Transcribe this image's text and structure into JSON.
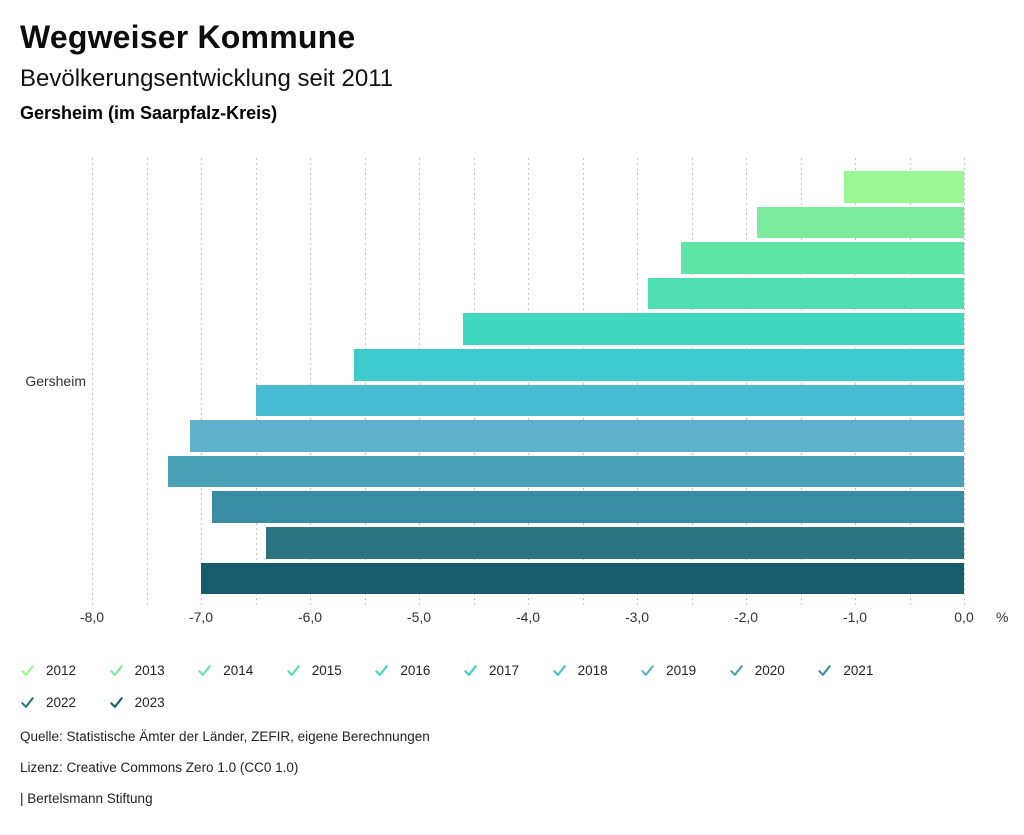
{
  "header": {
    "title": "Wegweiser Kommune",
    "subtitle": "Bevölkerungsentwicklung seit 2011",
    "region": "Gersheim (im Saarpfalz-Kreis)"
  },
  "chart_data": {
    "type": "bar",
    "orientation": "horizontal",
    "title": "Bevölkerungsentwicklung seit 2011",
    "category_label": "Gersheim",
    "unit_label": "%",
    "xlim": [
      -8.0,
      0.0
    ],
    "grid_step": 0.5,
    "grid": "on",
    "legend_position": "bottom",
    "x_tick_values": [
      -8,
      -7,
      -6,
      -5,
      -4,
      -3,
      -2,
      -1,
      0
    ],
    "x_tick_labels": [
      "-8,0",
      "-7,0",
      "-6,0",
      "-5,0",
      "-4,0",
      "-3,0",
      "-2,0",
      "-1,0",
      "0,0"
    ],
    "series": [
      {
        "name": "2012",
        "value": -1.1,
        "color": "#9BF794"
      },
      {
        "name": "2013",
        "value": -1.9,
        "color": "#7BEC9D"
      },
      {
        "name": "2014",
        "value": -2.6,
        "color": "#5FE5A6"
      },
      {
        "name": "2015",
        "value": -2.9,
        "color": "#4FDFB0"
      },
      {
        "name": "2016",
        "value": -4.6,
        "color": "#41D8C2"
      },
      {
        "name": "2017",
        "value": -5.6,
        "color": "#3ECBCE"
      },
      {
        "name": "2018",
        "value": -6.5,
        "color": "#49BCD3"
      },
      {
        "name": "2019",
        "value": -7.1,
        "color": "#5FB1CC"
      },
      {
        "name": "2020",
        "value": -7.3,
        "color": "#49A1B5"
      },
      {
        "name": "2021",
        "value": -6.9,
        "color": "#3A8CA3"
      },
      {
        "name": "2022",
        "value": -6.4,
        "color": "#2B7482"
      },
      {
        "name": "2023",
        "value": -7.0,
        "color": "#175C6B"
      }
    ]
  },
  "footer": {
    "source": "Quelle: Statistische Ämter der Länder, ZEFIR, eigene Berechnungen",
    "license": "Lizenz: Creative Commons Zero 1.0 (CC0 1.0)",
    "attribution": "| Bertelsmann Stiftung"
  }
}
